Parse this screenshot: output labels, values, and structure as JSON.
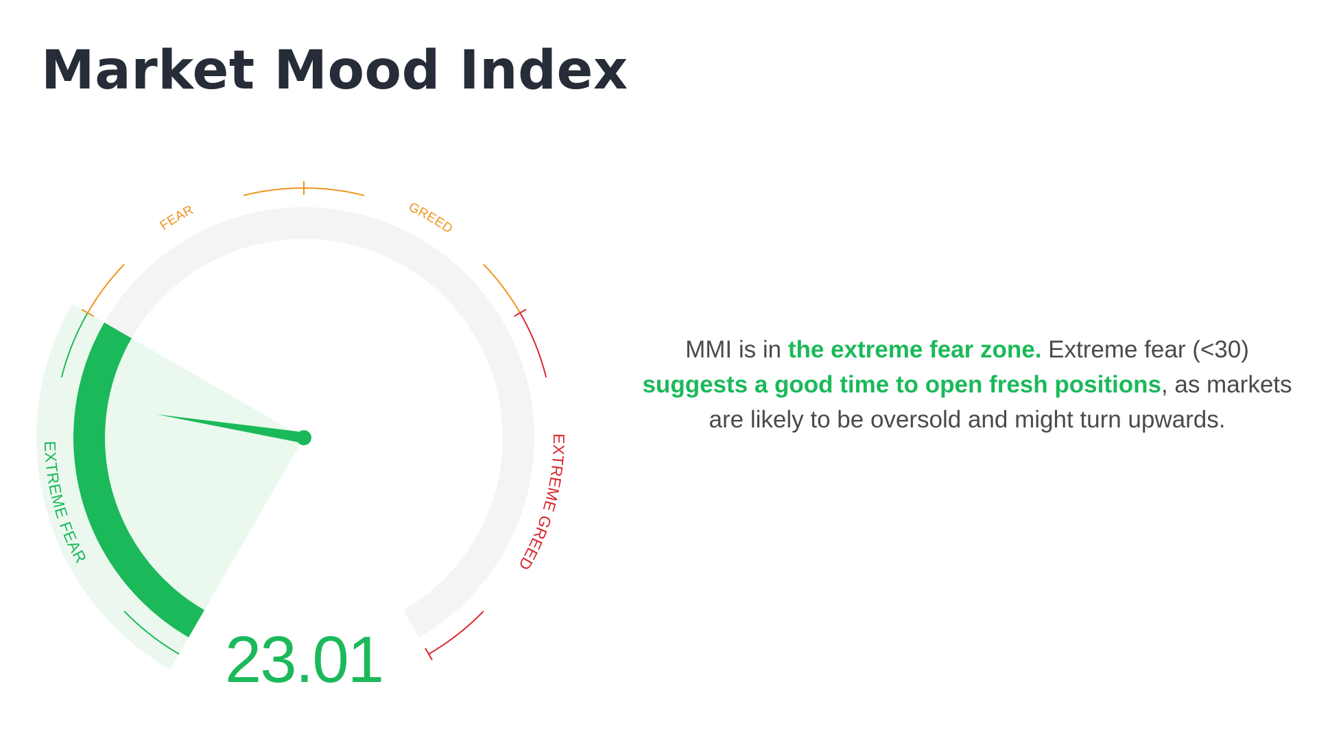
{
  "title": "Market Mood Index",
  "colors": {
    "title": "#262d38",
    "fear": "#f0931e",
    "greed": "#f0931e",
    "extreme_greed": "#d9262e",
    "extreme_fear": "#1bb95a",
    "track": "#f4f4f6",
    "text": "#4a4a4a"
  },
  "chart_data": {
    "type": "gauge",
    "value": 23.01,
    "value_label": "23.01",
    "range": [
      0,
      100
    ],
    "zones": [
      {
        "name": "EXTREME FEAR",
        "label": "EXTREME FEAR",
        "from": 0,
        "to": 30,
        "color": "#1bb95a"
      },
      {
        "name": "FEAR",
        "label": "FEAR",
        "from": 30,
        "to": 50,
        "color": "#f0931e"
      },
      {
        "name": "GREED",
        "label": "GREED",
        "from": 50,
        "to": 70,
        "color": "#f0931e"
      },
      {
        "name": "EXTREME GREED",
        "label": "EXTREME GREED",
        "from": 70,
        "to": 100,
        "color": "#d9262e"
      }
    ],
    "active_zone": "EXTREME FEAR"
  },
  "description": {
    "p1": "MMI is in ",
    "h1": "the extreme fear zone.",
    "p2": " Extreme fear (<30) ",
    "h2": "suggests a good time to open fresh positions",
    "p3": ", as markets are likely to be oversold and might turn upwards."
  }
}
